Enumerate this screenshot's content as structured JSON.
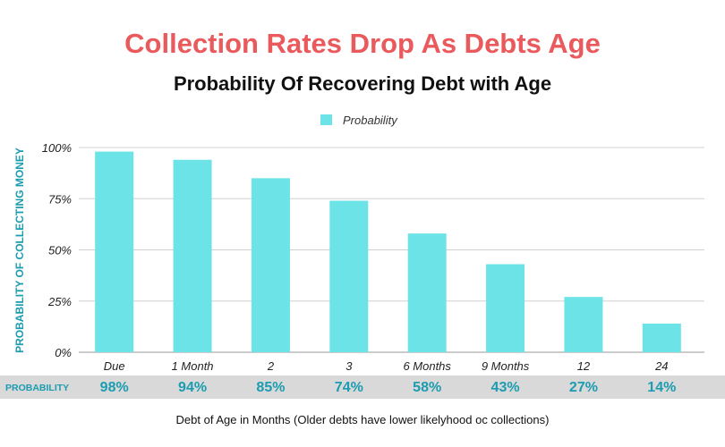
{
  "chart_data": {
    "type": "bar",
    "title": "Collection Rates Drop As Debts Age",
    "subtitle": "Probability Of Recovering Debt with Age",
    "legend": {
      "entries": [
        "Probability"
      ],
      "placement": "top-center"
    },
    "categories": [
      "Due",
      "1 Month",
      "2",
      "3",
      "6 Months",
      "9 Months",
      "12",
      "24"
    ],
    "series": [
      {
        "name": "Probability",
        "values": [
          98,
          94,
          85,
          74,
          58,
          43,
          27,
          14
        ]
      }
    ],
    "value_labels": [
      "98%",
      "94%",
      "85%",
      "74%",
      "58%",
      "43%",
      "27%",
      "14%"
    ],
    "table_row_label": "PROBABILITY",
    "ylabel": "PROBABILITY OF COLLECTING MONEY",
    "xlabel": "Debt of Age in Months (Older debts have lower likelyhood oc collections)",
    "ylim": [
      0,
      100
    ],
    "yticks": [
      0,
      25,
      50,
      75,
      100
    ],
    "ytick_labels": [
      "0%",
      "25%",
      "50%",
      "75%",
      "100%"
    ],
    "grid": true,
    "colors": {
      "bar": "#6ce3e6",
      "title": "#ea5a5c",
      "accent": "#1b9cb0",
      "table_bg": "#d9d9d9"
    }
  }
}
